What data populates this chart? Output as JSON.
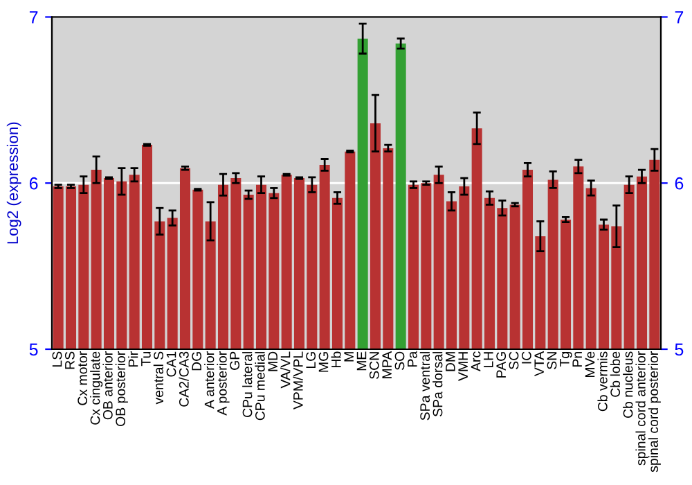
{
  "chart_data": {
    "type": "bar",
    "ylabel": "Log2 (expression)",
    "categories": [
      "LS",
      "RS",
      "Cx motor",
      "Cx cingulate",
      "OB anterior",
      "OB posterior",
      "Pir",
      "Tu",
      "ventral S",
      "CA1",
      "CA2/CA3",
      "DG",
      "A anterior",
      "A posterior",
      "GP",
      "CPu lateral",
      "CPu medial",
      "MD",
      "VA/VL",
      "VPM/VPL",
      "LG",
      "MG",
      "Hb",
      "M",
      "ME",
      "SCN",
      "MPA",
      "SO",
      "Pa",
      "SPa ventral",
      "SPa dorsal",
      "DM",
      "VMH",
      "Arc",
      "LH",
      "PAG",
      "SC",
      "IC",
      "VTA",
      "SN",
      "Tg",
      "Pn",
      "MVe",
      "Cb vermis",
      "Cb lobe",
      "Cb nucleus",
      "spinal cord anterior",
      "spinal cord posterior"
    ],
    "values": [
      5.98,
      5.98,
      5.99,
      6.08,
      6.03,
      6.01,
      6.05,
      6.23,
      5.77,
      5.79,
      6.09,
      5.96,
      5.77,
      5.99,
      6.03,
      5.93,
      5.99,
      5.94,
      6.05,
      6.03,
      5.99,
      6.11,
      5.91,
      6.19,
      6.87,
      6.36,
      6.21,
      6.84,
      5.99,
      6.0,
      6.05,
      5.89,
      5.98,
      6.33,
      5.91,
      5.85,
      5.87,
      6.08,
      5.68,
      6.02,
      5.78,
      6.1,
      5.97,
      5.75,
      5.74,
      5.99,
      6.04,
      6.14
    ],
    "errors": [
      0.01,
      0.01,
      0.05,
      0.08,
      0.005,
      0.08,
      0.04,
      0.005,
      0.08,
      0.045,
      0.01,
      0.005,
      0.115,
      0.065,
      0.03,
      0.025,
      0.05,
      0.03,
      0.005,
      0.005,
      0.045,
      0.035,
      0.035,
      0.005,
      0.09,
      0.17,
      0.02,
      0.03,
      0.02,
      0.01,
      0.05,
      0.055,
      0.05,
      0.095,
      0.04,
      0.045,
      0.01,
      0.04,
      0.09,
      0.05,
      0.015,
      0.04,
      0.045,
      0.03,
      0.125,
      0.05,
      0.04,
      0.065
    ],
    "colors": [
      "#b83232",
      "#b83232",
      "#b83232",
      "#b83232",
      "#b83232",
      "#b83232",
      "#b83232",
      "#b83232",
      "#b83232",
      "#b83232",
      "#b83232",
      "#b83232",
      "#b83232",
      "#b83232",
      "#b83232",
      "#b83232",
      "#b83232",
      "#b83232",
      "#b83232",
      "#b83232",
      "#b83232",
      "#b83232",
      "#b83232",
      "#b83232",
      "#33a033",
      "#b83232",
      "#b83232",
      "#33a033",
      "#b83232",
      "#b83232",
      "#b83232",
      "#b83232",
      "#b83232",
      "#b83232",
      "#b83232",
      "#b83232",
      "#b83232",
      "#b83232",
      "#b83232",
      "#b83232",
      "#b83232",
      "#b83232",
      "#b83232",
      "#b83232",
      "#b83232",
      "#b83232",
      "#b83232",
      "#b83232"
    ],
    "ylim": [
      5,
      7
    ],
    "yticks": [
      5,
      6,
      7
    ],
    "y2lim": [
      5,
      7
    ],
    "y2ticks": [
      5,
      6,
      7
    ],
    "grid": "y"
  }
}
